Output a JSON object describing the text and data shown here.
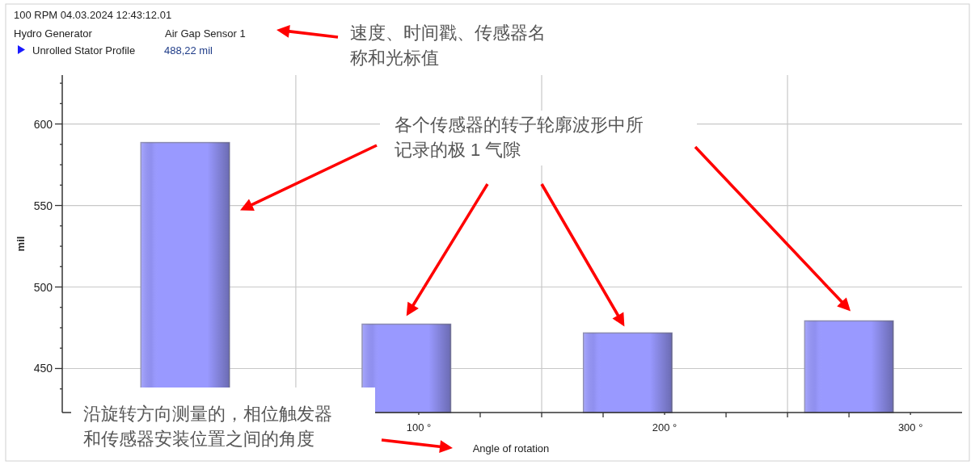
{
  "chart_data": {
    "type": "bar",
    "xlabel": "Angle of rotation",
    "ylabel": "mil",
    "x": [
      5,
      95,
      185,
      275
    ],
    "series": [
      {
        "color": "#9999ff",
        "values": [
          588.6,
          477.2,
          471.8,
          479.2
        ]
      }
    ],
    "xlim": [
      -45,
      321
    ],
    "xticks": [
      {
        "value": 50,
        "label": null
      },
      {
        "value": 100,
        "label": "100 °"
      },
      {
        "value": 125,
        "label": null
      },
      {
        "value": 150,
        "label": null
      },
      {
        "value": 175,
        "label": null
      },
      {
        "value": 200,
        "label": "200 °"
      },
      {
        "value": 225,
        "label": null
      },
      {
        "value": 250,
        "label": null
      },
      {
        "value": 275,
        "label": null
      },
      {
        "value": 300,
        "label": "300 °"
      }
    ],
    "ylim": [
      423,
      630
    ],
    "yticks": [
      {
        "value": 437.5,
        "label": null
      },
      450,
      {
        "value": 462.5,
        "label": null
      },
      {
        "value": 475,
        "label": null
      },
      {
        "value": 487.5,
        "label": null
      },
      500,
      {
        "value": 512.5,
        "label": null
      },
      {
        "value": 525,
        "label": null
      },
      {
        "value": 537.5,
        "label": null
      },
      550,
      {
        "value": 562.5,
        "label": null
      },
      {
        "value": 575,
        "label": null
      },
      {
        "value": 587.5,
        "label": null
      },
      600,
      {
        "value": 612.5,
        "label": null
      },
      {
        "value": 625,
        "label": null
      }
    ],
    "grid": "y",
    "ref_lines": [
      {
        "axis": "x",
        "value": 50,
        "color": "#c8c8c8"
      },
      {
        "axis": "x",
        "value": 150,
        "color": "#c8c8c8"
      },
      {
        "axis": "x",
        "value": 250,
        "color": "#c8c8c8"
      }
    ],
    "annotations": [
      "100 RPM  04.03.2024 12:43:12.01",
      "Hydro Generator",
      "Air Gap Sensor 1",
      "Unrolled Stator Profile",
      "488,22 mil",
      "速度、时间戳、传感器名称和光标值",
      "各个传感器的转子轮廓波形中所记录的极 1 气隙",
      "沿旋转方向测量的，相位触发器和传感器安装位置之间的角度"
    ]
  }
}
